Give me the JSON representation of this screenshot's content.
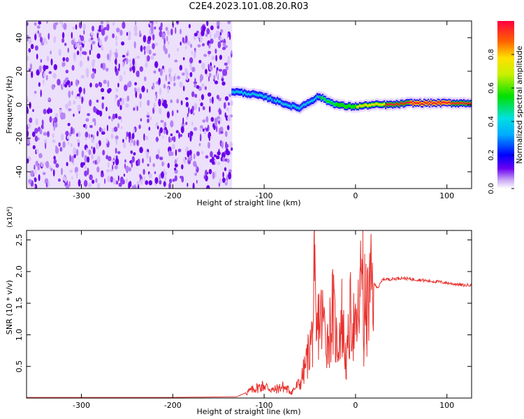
{
  "title": "C2E4.2023.101.08.20.R03",
  "chart_data": [
    {
      "type": "heatmap",
      "xlabel": "Height of straight line (km)",
      "ylabel": "Frequency (Hz)",
      "xlim": [
        -360,
        127
      ],
      "ylim": [
        -50,
        50
      ],
      "xticks": [
        -300,
        -200,
        -100,
        0,
        100
      ],
      "yticks": [
        -40,
        -20,
        0,
        20,
        40
      ],
      "colorbar": {
        "label": "Normalized spectral amplitude",
        "range": [
          0,
          1
        ],
        "ticks": [
          "0.0",
          "0.2",
          "0.4",
          "0.6",
          "0.8"
        ]
      },
      "noise_region_x": [
        -360,
        -135
      ],
      "ridge_center_hz": {
        "x": [
          -135,
          -110,
          -95,
          -75,
          -62,
          -50,
          -40,
          -30,
          -20,
          -10,
          0,
          20,
          40,
          60,
          80,
          100,
          127
        ],
        "y": [
          8,
          6,
          4,
          0,
          -2,
          2,
          5,
          2,
          0,
          -1,
          -1,
          0,
          0,
          1,
          1,
          1,
          1
        ]
      },
      "ridge_peak_amplitude": {
        "x": [
          -135,
          -110,
          -90,
          -60,
          -40,
          -20,
          0,
          40,
          80,
          127
        ],
        "y": [
          0.5,
          0.55,
          0.45,
          0.5,
          0.55,
          0.7,
          0.7,
          0.85,
          0.9,
          0.85
        ]
      }
    },
    {
      "type": "line",
      "xlabel": "Height of straight line (km)",
      "ylabel": "SNR (10 * v/v)",
      "y_multiplier": "(x10⁴)",
      "xlim": [
        -360,
        127
      ],
      "ylim": [
        0,
        2.65
      ],
      "xticks": [
        -300,
        -200,
        -100,
        0,
        100
      ],
      "yticks": [
        "0.5",
        "1.0",
        "1.5",
        "2.0",
        "2.5"
      ],
      "color": "#e8302c",
      "series": [
        {
          "x": [
            -360,
            -300,
            -200,
            -130,
            -110,
            -100,
            -90,
            -80,
            -70,
            -60,
            -55,
            -50,
            -47,
            -45,
            -43,
            -40,
            -35,
            -30,
            -25,
            -20,
            -15,
            -10,
            -5,
            0,
            3,
            5,
            7,
            8,
            9,
            10,
            12,
            15,
            20,
            25,
            30,
            40,
            50,
            60,
            70,
            80,
            90,
            100,
            110,
            120,
            127
          ],
          "y": [
            0.01,
            0.01,
            0.01,
            0.02,
            0.15,
            0.2,
            0.12,
            0.18,
            0.1,
            0.25,
            0.5,
            0.8,
            1.0,
            1.85,
            0.9,
            1.3,
            1.2,
            0.9,
            1.4,
            0.8,
            1.3,
            0.5,
            1.4,
            1.0,
            1.3,
            1.6,
            2.2,
            2.65,
            0.5,
            1.6,
            1.3,
            1.6,
            1.8,
            1.75,
            1.88,
            1.88,
            1.9,
            1.88,
            1.87,
            1.85,
            1.84,
            1.82,
            1.8,
            1.78,
            1.8
          ]
        }
      ]
    }
  ]
}
